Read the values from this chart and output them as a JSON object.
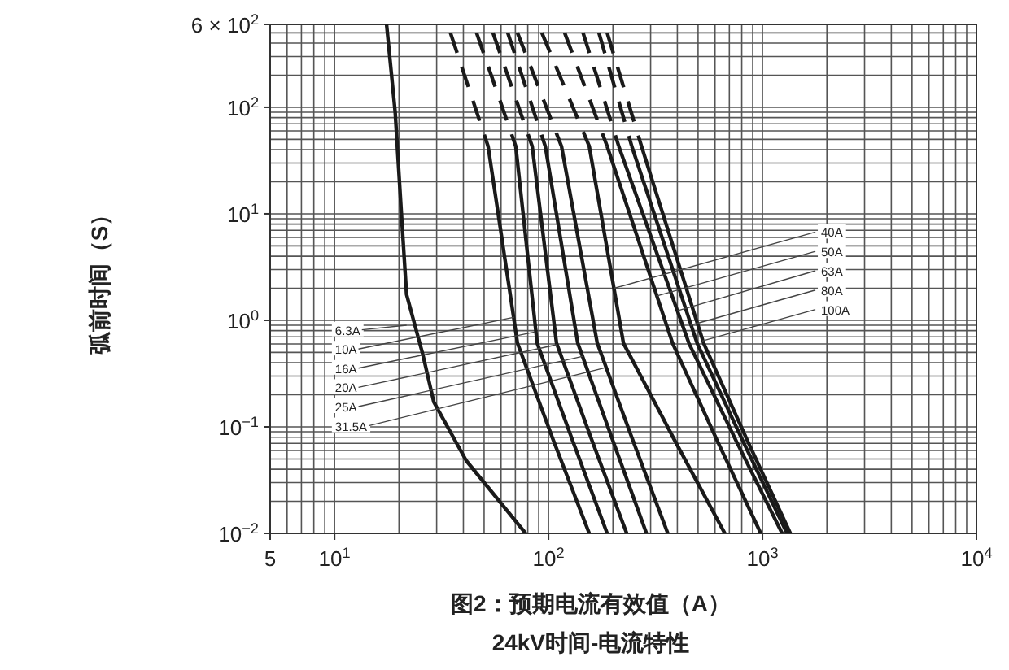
{
  "chart_data": {
    "type": "line",
    "title": "24kV时间-电流特性",
    "xlabel": "图2：预期电流有效值（A）",
    "ylabel": "弧前时间（S）",
    "log": "xy",
    "grid": true,
    "xlim": [
      5,
      10000
    ],
    "ylim": [
      0.01,
      600
    ],
    "xticks": [
      5,
      {
        "value": 10,
        "label": "10$^{1}$"
      },
      {
        "value": 100,
        "label": "10$^{2}$"
      },
      {
        "value": 1000,
        "label": "10$^{3}$"
      },
      {
        "value": 10000,
        "label": "10$^{4}$"
      }
    ],
    "yticks": [
      {
        "value": 0.01,
        "label": "10$^{−2}$"
      },
      {
        "value": 0.1,
        "label": "10$^{−1}$"
      },
      {
        "value": 1,
        "label": "10$^{0}$"
      },
      {
        "value": 10,
        "label": "10$^{1}$"
      },
      {
        "value": 100,
        "label": "10$^{2}$"
      },
      {
        "value": 600,
        "label": "6 × 10$^{2}$"
      }
    ],
    "series": [
      {
        "color": "#1a1a1a",
        "line_style": "solid",
        "x": [
          17.5,
          19.2,
          20.6,
          21.7,
          25.8,
          29.1,
          41.3,
          78.2
        ],
        "values": [
          600,
          90,
          9,
          1.75,
          0.486,
          0.171,
          0.048,
          0.01
        ]
      },
      {
        "color": "#1a1a1a",
        "line_style": "dashed",
        "x": [
          34.8,
          52.2
        ],
        "values": [
          500,
          43
        ]
      },
      {
        "color": "#1a1a1a",
        "line_style": "solid",
        "x": [
          52.2,
          71.6,
          105,
          155
        ],
        "values": [
          43,
          0.61,
          0.076,
          0.01
        ]
      },
      {
        "color": "#1a1a1a",
        "line_style": "dashed",
        "x": [
          46.1,
          70.3
        ],
        "values": [
          500,
          43
        ]
      },
      {
        "color": "#1a1a1a",
        "line_style": "solid",
        "x": [
          70.3,
          88.5,
          129,
          188
        ],
        "values": [
          43,
          0.61,
          0.076,
          0.01
        ]
      },
      {
        "color": "#1a1a1a",
        "line_style": "dashed",
        "x": [
          55,
          83.9
        ],
        "values": [
          500,
          43
        ]
      },
      {
        "color": "#1a1a1a",
        "line_style": "solid",
        "x": [
          83.9,
          109,
          159,
          232
        ],
        "values": [
          43,
          0.61,
          0.076,
          0.01
        ]
      },
      {
        "color": "#1a1a1a",
        "line_style": "dashed",
        "x": [
          64.5,
          96.6
        ],
        "values": [
          500,
          43
        ]
      },
      {
        "color": "#1a1a1a",
        "line_style": "solid",
        "x": [
          96.6,
          137,
          199,
          287
        ],
        "values": [
          43,
          0.61,
          0.076,
          0.01
        ]
      },
      {
        "color": "#1a1a1a",
        "line_style": "dashed",
        "x": [
          71.6,
          115
        ],
        "values": [
          500,
          43
        ]
      },
      {
        "color": "#1a1a1a",
        "line_style": "solid",
        "x": [
          115,
          169,
          247,
          361
        ],
        "values": [
          43,
          0.61,
          0.076,
          0.01
        ]
      },
      {
        "color": "#1a1a1a",
        "line_style": "dashed",
        "x": [
          93.1,
          155
        ],
        "values": [
          500,
          43
        ]
      },
      {
        "color": "#1a1a1a",
        "line_style": "solid",
        "x": [
          155,
          224,
          387,
          667
        ],
        "values": [
          43,
          0.61,
          0.076,
          0.01
        ]
      },
      {
        "color": "#1a1a1a",
        "line_style": "dashed",
        "x": [
          119,
          188
        ],
        "values": [
          500,
          43
        ]
      },
      {
        "color": "#1a1a1a",
        "line_style": "solid",
        "x": [
          188,
          380,
          611,
          982
        ],
        "values": [
          43,
          0.61,
          0.076,
          0.01
        ]
      },
      {
        "color": "#1a1a1a",
        "line_style": "dashed",
        "x": [
          145,
          213
        ],
        "values": [
          500,
          43
        ]
      },
      {
        "color": "#1a1a1a",
        "line_style": "solid",
        "x": [
          213,
          453,
          748,
          1236
        ],
        "values": [
          43,
          0.61,
          0.076,
          0.01
        ]
      },
      {
        "color": "#1a1a1a",
        "line_style": "dashed",
        "x": [
          172,
          245
        ],
        "values": [
          500,
          43
        ]
      },
      {
        "color": "#1a1a1a",
        "line_style": "solid",
        "x": [
          245,
          495,
          804,
          1303
        ],
        "values": [
          43,
          0.61,
          0.076,
          0.01
        ]
      },
      {
        "color": "#1a1a1a",
        "line_style": "dashed",
        "x": [
          188,
          272
        ],
        "values": [
          500,
          43
        ]
      },
      {
        "color": "#1a1a1a",
        "line_style": "solid",
        "x": [
          272,
          531,
          846,
          1350
        ],
        "values": [
          43,
          0.61,
          0.076,
          0.01
        ]
      }
    ],
    "annotations": [
      {
        "text": "6.3A",
        "x": 21.7,
        "y": 0.9
      },
      {
        "text": "10A",
        "x": 69.1,
        "y": 1.07
      },
      {
        "text": "16A",
        "x": 86.9,
        "y": 0.78
      },
      {
        "text": "20A",
        "x": 109,
        "y": 0.59
      },
      {
        "text": "25A",
        "x": 145,
        "y": 0.46
      },
      {
        "text": "31.5A",
        "x": 185,
        "y": 0.36
      },
      {
        "text": "40A",
        "x": 202,
        "y": 2.0
      },
      {
        "text": "50A",
        "x": 319,
        "y": 1.69
      },
      {
        "text": "63A",
        "x": 401,
        "y": 1.23
      },
      {
        "text": "80A",
        "x": 461,
        "y": 0.9
      },
      {
        "text": "100A",
        "x": 522,
        "y": 0.64
      }
    ]
  }
}
